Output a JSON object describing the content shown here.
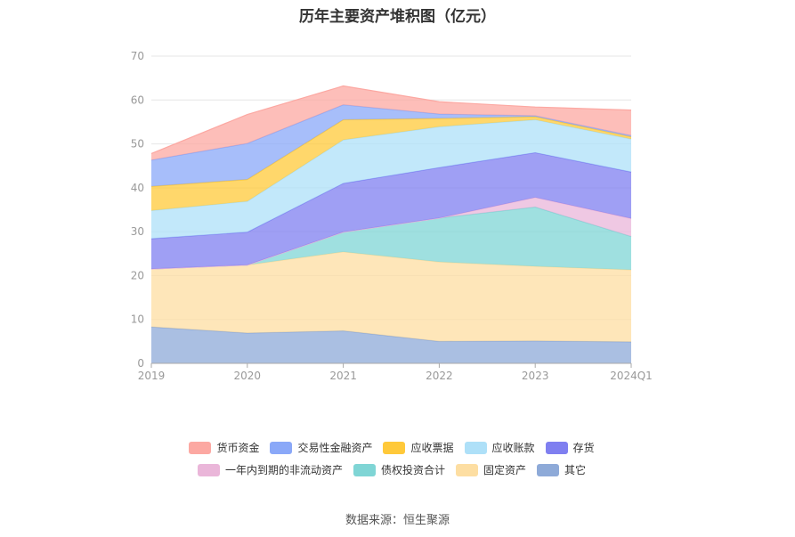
{
  "chart_data": {
    "type": "area",
    "stacked": true,
    "title": "历年主要资产堆积图（亿元）",
    "categories": [
      "2019",
      "2020",
      "2021",
      "2022",
      "2023",
      "2024Q1"
    ],
    "ylim": [
      0,
      70
    ],
    "yticks": [
      0,
      10,
      20,
      30,
      40,
      50,
      60,
      70
    ],
    "grid": true,
    "legend_position": "bottom",
    "series": [
      {
        "name": "其它",
        "color": "#8eaad8",
        "values": [
          8.3,
          6.9,
          7.4,
          5.0,
          5.1,
          4.9
        ]
      },
      {
        "name": "固定资产",
        "color": "#fddea2",
        "values": [
          13.2,
          15.5,
          18.0,
          18.1,
          17.0,
          16.4
        ]
      },
      {
        "name": "债权投资合计",
        "color": "#7fd5d5",
        "values": [
          0,
          0,
          4.5,
          10.0,
          13.5,
          7.6
        ]
      },
      {
        "name": "一年内到期的非流动资产",
        "color": "#eab6d9",
        "values": [
          0,
          0,
          0,
          0,
          2.2,
          4.1
        ]
      },
      {
        "name": "存货",
        "color": "#7f7ff0",
        "values": [
          6.9,
          7.5,
          11.1,
          11.5,
          10.2,
          10.6
        ]
      },
      {
        "name": "应收账款",
        "color": "#aee0f8",
        "values": [
          6.4,
          7.0,
          9.9,
          9.3,
          7.5,
          7.5
        ]
      },
      {
        "name": "应收票据",
        "color": "#ffc93a",
        "values": [
          5.5,
          5.0,
          4.6,
          1.9,
          0.7,
          0.5
        ]
      },
      {
        "name": "交易性金融资产",
        "color": "#8aa8f8",
        "values": [
          6.0,
          8.2,
          3.4,
          1.0,
          0.2,
          0.3
        ]
      },
      {
        "name": "货币资金",
        "color": "#fca8a2",
        "values": [
          1.5,
          6.6,
          4.3,
          2.8,
          2.0,
          5.8
        ]
      }
    ],
    "legend_rows": [
      [
        "货币资金",
        "交易性金融资产",
        "应收票据",
        "应收账款",
        "存货"
      ],
      [
        "一年内到期的非流动资产",
        "债权投资合计",
        "固定资产",
        "其它"
      ]
    ]
  },
  "source": "数据来源：恒生聚源"
}
